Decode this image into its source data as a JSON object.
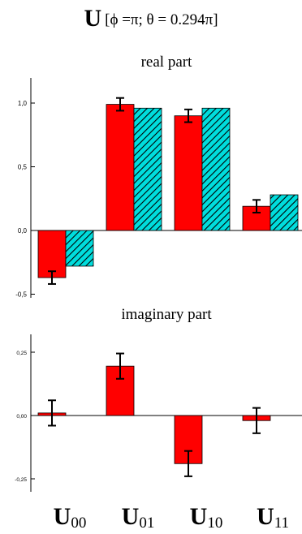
{
  "title": {
    "symbol": "U",
    "sub": "[ϕ =π; θ = 0.294π]"
  },
  "colors": {
    "measured": "#ff0000",
    "theory": "#00dddd",
    "hatch": "#000000",
    "axis": "#000000"
  },
  "chart_data": [
    {
      "type": "bar",
      "title": "real part",
      "categories": [
        "U00",
        "U01",
        "U10",
        "U11"
      ],
      "category_labels": [
        {
          "main": "U",
          "sub": "00"
        },
        {
          "main": "U",
          "sub": "01"
        },
        {
          "main": "U",
          "sub": "10"
        },
        {
          "main": "U",
          "sub": "11"
        }
      ],
      "series": [
        {
          "key": "measured",
          "values": [
            -0.37,
            0.99,
            0.9,
            0.19
          ],
          "errors": [
            0.05,
            0.05,
            0.05,
            0.05
          ],
          "color": "#ff0000"
        },
        {
          "key": "theory",
          "values": [
            -0.28,
            0.96,
            0.96,
            0.28
          ],
          "color": "#00dddd",
          "pattern": "hatched"
        }
      ],
      "ylim": [
        -0.52,
        1.2
      ],
      "yticks": [
        1.0,
        0.5,
        0.0,
        -0.5
      ],
      "ytick_labels": [
        "1,0",
        "0,5",
        "0,0",
        "-0,5"
      ],
      "grid": false
    },
    {
      "type": "bar",
      "title": "imaginary part",
      "categories": [
        "U00",
        "U01",
        "U10",
        "U11"
      ],
      "series": [
        {
          "key": "measured",
          "values": [
            0.01,
            0.195,
            -0.19,
            -0.02
          ],
          "errors": [
            0.05,
            0.05,
            0.05,
            0.05
          ],
          "color": "#ff0000"
        }
      ],
      "ylim": [
        -0.3,
        0.31
      ],
      "yticks": [
        0.25,
        0.0,
        -0.25
      ],
      "ytick_labels": [
        "0,25",
        "0,00",
        "-0,25"
      ],
      "grid": false
    }
  ]
}
